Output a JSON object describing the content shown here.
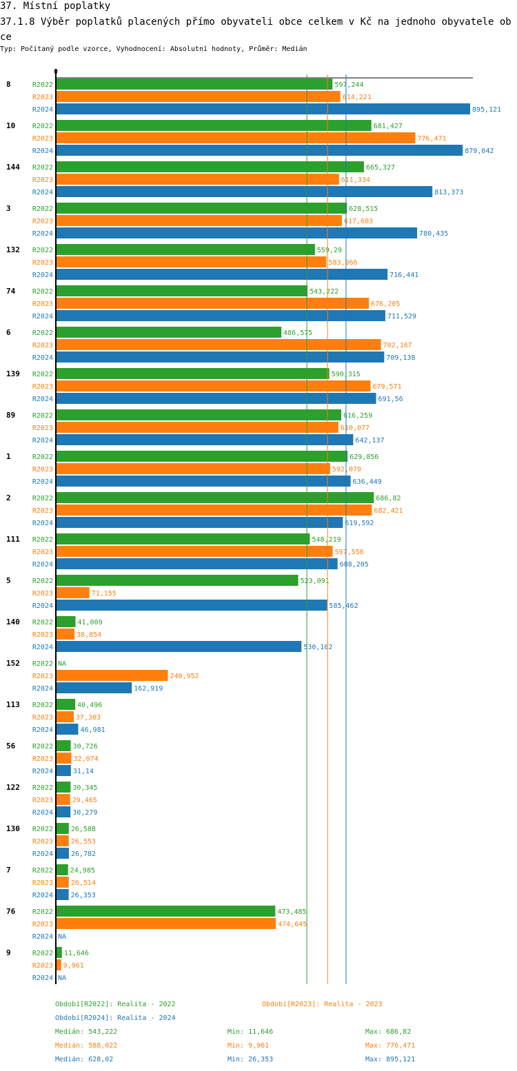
{
  "header": {
    "section": "37. Místní poplatky",
    "title": "37.1.8 Výběr poplatků placených přímo obyvateli obce celkem  v Kč na jednoho obyvatele obce",
    "subtitle": "Typ: Počítaný podle vzorce, Vyhodnocení: Absolutní hodnoty, Průměr: Medián"
  },
  "chart_data": {
    "type": "bar",
    "orientation": "horizontal",
    "axis_zero_label": "0",
    "xlim": [
      0,
      895.121
    ],
    "colors": {
      "R2022": "#2ca02c",
      "R2023": "#ff7f0e",
      "R2024": "#1f77b4"
    },
    "series_names": [
      "R2022",
      "R2023",
      "R2024"
    ],
    "na_label": "NA",
    "categories": [
      "8",
      "10",
      "144",
      "3",
      "132",
      "74",
      "6",
      "139",
      "89",
      "1",
      "2",
      "111",
      "5",
      "140",
      "152",
      "113",
      "56",
      "122",
      "130",
      "7",
      "76",
      "9"
    ],
    "series": [
      {
        "name": "R2022",
        "values": [
          597.244,
          681.427,
          665.327,
          628.515,
          559.29,
          543.222,
          486.575,
          590.315,
          616.259,
          629.856,
          686.82,
          548.219,
          523.091,
          41.009,
          null,
          40.496,
          30.726,
          30.345,
          26.588,
          24.985,
          473.485,
          11.646
        ]
      },
      {
        "name": "R2023",
        "values": [
          614.221,
          776.471,
          611.334,
          617.603,
          583.966,
          676.205,
          702.167,
          679.571,
          610.077,
          592.079,
          682.421,
          597.558,
          71.155,
          38.854,
          240.952,
          37.303,
          32.074,
          29.465,
          26.553,
          26.514,
          474.645,
          9.961
        ]
      },
      {
        "name": "R2024",
        "values": [
          895.121,
          879.042,
          813.373,
          780.435,
          716.441,
          711.529,
          709.138,
          691.56,
          642.137,
          636.449,
          619.592,
          608.205,
          585.462,
          530.102,
          162.919,
          46.981,
          31.14,
          30.279,
          26.782,
          26.353,
          null,
          null
        ]
      }
    ],
    "medians": [
      543.222,
      588.022,
      628.02
    ]
  },
  "legend": {
    "items": [
      "Období[R2022]: Realita - 2022",
      "Období[R2023]: Realita - 2023",
      "Období[R2024]: Realita - 2024"
    ],
    "stats": [
      {
        "median": "Medián: 543,222",
        "min": "Min: 11,646",
        "max": "Max: 686,82"
      },
      {
        "median": "Medián: 588,022",
        "min": "Min: 9,961",
        "max": "Max: 776,471"
      },
      {
        "median": "Medián: 628,02",
        "min": "Min: 26,353",
        "max": "Max: 895,121"
      }
    ]
  }
}
